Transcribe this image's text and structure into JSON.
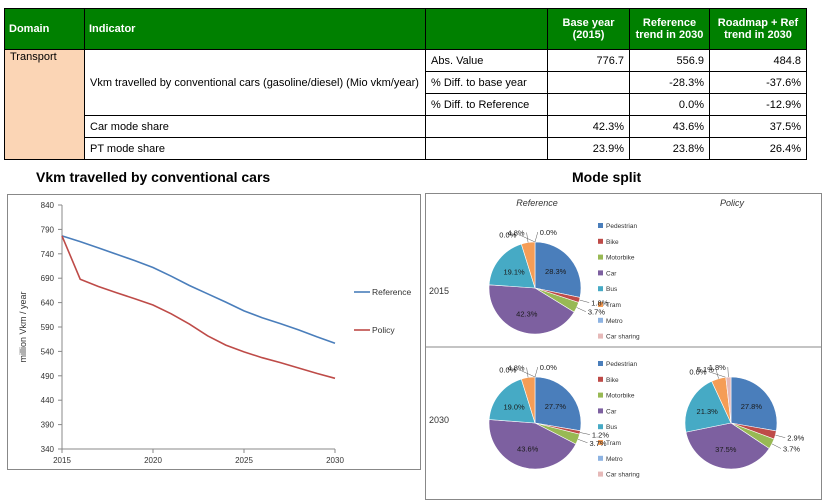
{
  "table": {
    "headers": [
      "Domain",
      "Indicator",
      "",
      "Base year (2015)",
      "Reference trend in 2030",
      "Roadmap + Ref trend in 2030"
    ],
    "domain": "Transport",
    "vkm_indicator": "Vkm travelled by conventional cars (gasoline/diesel) (Mio vkm/year)",
    "rows": [
      {
        "sub": "Abs. Value",
        "base": "776.7",
        "ref": "556.9",
        "roadmap": "484.8"
      },
      {
        "sub": "% Diff. to base year",
        "base": "",
        "ref": "-28.3%",
        "roadmap": "-37.6%"
      },
      {
        "sub": "% Diff. to Reference",
        "base": "",
        "ref": "0.0%",
        "roadmap": "-12.9%"
      },
      {
        "indicator": "Car mode share",
        "base": "42.3%",
        "ref": "43.6%",
        "roadmap": "37.5%"
      },
      {
        "indicator": "PT mode share",
        "base": "23.9%",
        "ref": "23.8%",
        "roadmap": "26.4%"
      }
    ]
  },
  "line_title": "Vkm travelled by conventional cars",
  "pie_title": "Mode split",
  "colors": {
    "header_green": "#008000",
    "domain_fill": "#fbd5b5",
    "reference": "#4a7ebb",
    "policy": "#be4b48"
  },
  "chart_data": [
    {
      "type": "line",
      "title": "Vkm travelled by conventional cars",
      "ylabel": "million Vkm / year",
      "xlabel": "",
      "ylim": [
        340,
        840
      ],
      "yticks": [
        340,
        390,
        440,
        490,
        540,
        590,
        640,
        690,
        740,
        790,
        840
      ],
      "xlim": [
        2015,
        2030
      ],
      "xticks": [
        2015,
        2020,
        2025,
        2030
      ],
      "grid": false,
      "legend": "right",
      "series": [
        {
          "name": "Reference",
          "color": "#4a7ebb",
          "x": [
            2015,
            2016,
            2017,
            2018,
            2019,
            2020,
            2021,
            2022,
            2023,
            2024,
            2025,
            2026,
            2027,
            2028,
            2029,
            2030
          ],
          "y": [
            776.7,
            765,
            752,
            739,
            726,
            712,
            694,
            675,
            658,
            641,
            623,
            609,
            597,
            584,
            570,
            556.9
          ]
        },
        {
          "name": "Policy",
          "color": "#be4b48",
          "x": [
            2015,
            2016,
            2017,
            2018,
            2019,
            2020,
            2021,
            2022,
            2023,
            2024,
            2025,
            2026,
            2027,
            2028,
            2029,
            2030
          ],
          "y": [
            776.7,
            688,
            673,
            660,
            648,
            635,
            617,
            596,
            572,
            553,
            539,
            527,
            517,
            506,
            495,
            484.8
          ]
        }
      ]
    },
    {
      "type": "pie",
      "title": "Mode split",
      "columns": [
        "Reference",
        "Policy"
      ],
      "rows": [
        "2015",
        "2030"
      ],
      "legend": "right",
      "categories": [
        "Pedestrian",
        "Bike",
        "Motorbike",
        "Car",
        "Bus",
        "Tram",
        "Metro",
        "Car sharing"
      ],
      "colors": [
        "#4a7ebb",
        "#be4b48",
        "#98b954",
        "#7d60a0",
        "#46aac5",
        "#f59d56",
        "#8db3e2",
        "#e6b9b8"
      ],
      "pies": [
        {
          "column": "Reference",
          "row": "2015",
          "values": [
            28.3,
            1.8,
            3.7,
            42.3,
            19.1,
            4.8,
            0.0,
            0.0
          ],
          "labels": [
            "28.3%",
            "1.8%",
            "3.7%",
            "42.3%",
            "19.1%",
            "4.8%",
            "0.0%",
            "0.0%"
          ]
        },
        {
          "column": "Reference",
          "row": "2030",
          "values": [
            27.7,
            1.2,
            3.7,
            43.6,
            19.0,
            4.8,
            0.0,
            0.0
          ],
          "labels": [
            "27.7%",
            "1.2%",
            "3.7%",
            "43.6%",
            "19.0%",
            "4.8%",
            "0.0%",
            "0.0%"
          ]
        },
        {
          "column": "Policy",
          "row": "2030",
          "values": [
            27.8,
            2.9,
            3.7,
            37.5,
            21.3,
            5.1,
            0.0,
            1.8
          ],
          "labels": [
            "27.8%",
            "2.9%",
            "3.7%",
            "37.5%",
            "21.3%",
            "5.1%",
            "0.0%",
            "1.8%"
          ]
        }
      ]
    }
  ]
}
